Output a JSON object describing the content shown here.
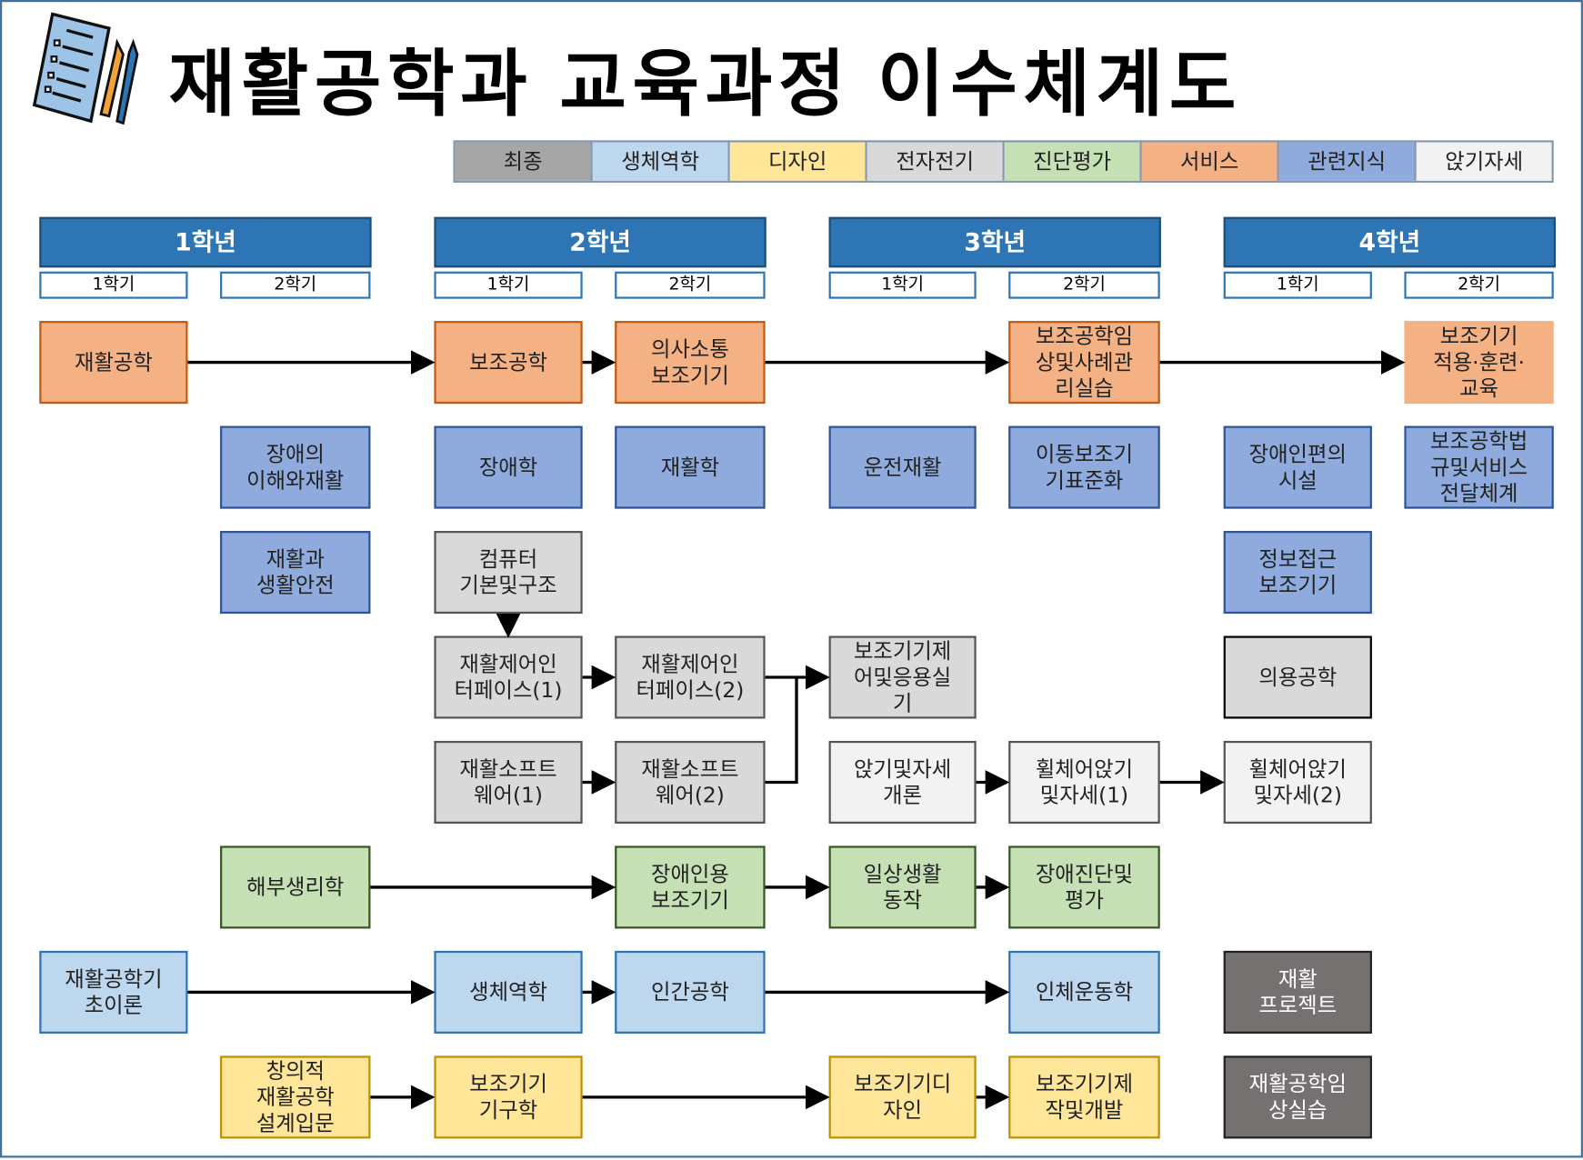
{
  "title": "재활공학과 교육과정 이수체계도",
  "logo_icon": "checklist-with-pencils-icon",
  "legend": [
    {
      "key": "final",
      "label": "최종",
      "color": "#A6A6A6"
    },
    {
      "key": "bio",
      "label": "생체역학",
      "color": "#BDD7EE"
    },
    {
      "key": "design",
      "label": "디자인",
      "color": "#FFE699"
    },
    {
      "key": "elec",
      "label": "전자전기",
      "color": "#D9D9D9"
    },
    {
      "key": "diag",
      "label": "진단평가",
      "color": "#C5E0B4"
    },
    {
      "key": "svc",
      "label": "서비스",
      "color": "#F4B183"
    },
    {
      "key": "rel",
      "label": "관련지식",
      "color": "#8FAADC"
    },
    {
      "key": "sit",
      "label": "앉기자세",
      "color": "#F2F2F2"
    }
  ],
  "box_colors": {
    "final": "#767171",
    "bio": "#BDD7EE",
    "design": "#FFE699",
    "elec": "#D9D9D9",
    "diag": "#C5E0B4",
    "svc": "#F4B183",
    "rel": "#8FAADC",
    "sit": "#F2F2F2"
  },
  "years": [
    "1학년",
    "2학년",
    "3학년",
    "4학년"
  ],
  "semesters": [
    "1학기",
    "2학기"
  ],
  "courses": [
    {
      "id": "c1",
      "name": "재활공학",
      "year": 1,
      "semester": 1,
      "category": "svc"
    },
    {
      "id": "c2",
      "name": "보조공학",
      "year": 2,
      "semester": 1,
      "category": "svc"
    },
    {
      "id": "c3",
      "name": "의사소통\n보조기기",
      "year": 2,
      "semester": 2,
      "category": "svc"
    },
    {
      "id": "c4",
      "name": "보조공학임\n상및사례관\n리실습",
      "year": 3,
      "semester": 2,
      "category": "svc"
    },
    {
      "id": "c5",
      "name": "보조기기\n적용·훈련·\n교육",
      "year": 4,
      "semester": 2,
      "category": "svc"
    },
    {
      "id": "c6",
      "name": "장애의\n이해와재활",
      "year": 1,
      "semester": 2,
      "category": "rel"
    },
    {
      "id": "c7",
      "name": "장애학",
      "year": 2,
      "semester": 1,
      "category": "rel"
    },
    {
      "id": "c8",
      "name": "재활학",
      "year": 2,
      "semester": 2,
      "category": "rel"
    },
    {
      "id": "c9",
      "name": "운전재활",
      "year": 3,
      "semester": 1,
      "category": "rel"
    },
    {
      "id": "c10",
      "name": "이동보조기\n기표준화",
      "year": 3,
      "semester": 2,
      "category": "rel"
    },
    {
      "id": "c11",
      "name": "장애인편의\n시설",
      "year": 4,
      "semester": 1,
      "category": "rel"
    },
    {
      "id": "c12",
      "name": "보조공학법\n규및서비스\n전달체계",
      "year": 4,
      "semester": 2,
      "category": "rel"
    },
    {
      "id": "c13",
      "name": "재활과\n생활안전",
      "year": 1,
      "semester": 2,
      "category": "rel"
    },
    {
      "id": "c14",
      "name": "컴퓨터\n기본및구조",
      "year": 2,
      "semester": 1,
      "category": "elec"
    },
    {
      "id": "c15",
      "name": "정보접근\n보조기기",
      "year": 4,
      "semester": 1,
      "category": "rel"
    },
    {
      "id": "c16",
      "name": "재활제어인\n터페이스(1)",
      "year": 2,
      "semester": 1,
      "category": "elec"
    },
    {
      "id": "c17",
      "name": "재활제어인\n터페이스(2)",
      "year": 2,
      "semester": 2,
      "category": "elec"
    },
    {
      "id": "c18",
      "name": "보조기기제\n어및응용실\n기",
      "year": 3,
      "semester": 1,
      "category": "elec"
    },
    {
      "id": "c19",
      "name": "의용공학",
      "year": 4,
      "semester": 1,
      "category": "elec"
    },
    {
      "id": "c20",
      "name": "재활소프트\n웨어(1)",
      "year": 2,
      "semester": 1,
      "category": "elec"
    },
    {
      "id": "c21",
      "name": "재활소프트\n웨어(2)",
      "year": 2,
      "semester": 2,
      "category": "elec"
    },
    {
      "id": "c22",
      "name": "앉기및자세\n개론",
      "year": 3,
      "semester": 1,
      "category": "sit"
    },
    {
      "id": "c23",
      "name": "휠체어앉기\n및자세(1)",
      "year": 3,
      "semester": 2,
      "category": "sit"
    },
    {
      "id": "c24",
      "name": "휠체어앉기\n및자세(2)",
      "year": 4,
      "semester": 1,
      "category": "sit"
    },
    {
      "id": "c25",
      "name": "해부생리학",
      "year": 1,
      "semester": 2,
      "category": "diag"
    },
    {
      "id": "c26",
      "name": "장애인용\n보조기기",
      "year": 2,
      "semester": 2,
      "category": "diag"
    },
    {
      "id": "c27",
      "name": "일상생활\n동작",
      "year": 3,
      "semester": 1,
      "category": "diag"
    },
    {
      "id": "c28",
      "name": "장애진단및\n평가",
      "year": 3,
      "semester": 2,
      "category": "diag"
    },
    {
      "id": "c29",
      "name": "재활공학기\n초이론",
      "year": 1,
      "semester": 1,
      "category": "bio"
    },
    {
      "id": "c30",
      "name": "생체역학",
      "year": 2,
      "semester": 1,
      "category": "bio"
    },
    {
      "id": "c31",
      "name": "인간공학",
      "year": 2,
      "semester": 2,
      "category": "bio"
    },
    {
      "id": "c32",
      "name": "인체운동학",
      "year": 3,
      "semester": 2,
      "category": "bio"
    },
    {
      "id": "c33",
      "name": "재활\n프로젝트",
      "year": 4,
      "semester": 1,
      "category": "final"
    },
    {
      "id": "c34",
      "name": "창의적\n재활공학\n설계입문",
      "year": 1,
      "semester": 2,
      "category": "design"
    },
    {
      "id": "c35",
      "name": "보조기기\n기구학",
      "year": 2,
      "semester": 1,
      "category": "design"
    },
    {
      "id": "c36",
      "name": "보조기기디\n자인",
      "year": 3,
      "semester": 1,
      "category": "design"
    },
    {
      "id": "c37",
      "name": "보조기기제\n작및개발",
      "year": 3,
      "semester": 2,
      "category": "design"
    },
    {
      "id": "c38",
      "name": "재활공학임\n상실습",
      "year": 4,
      "semester": 1,
      "category": "final"
    }
  ],
  "prerequisites": [
    [
      "c1",
      "c2"
    ],
    [
      "c2",
      "c3"
    ],
    [
      "c3",
      "c4"
    ],
    [
      "c4",
      "c5"
    ],
    [
      "c14",
      "c16"
    ],
    [
      "c16",
      "c17"
    ],
    [
      "c17",
      "c18"
    ],
    [
      "c20",
      "c21"
    ],
    [
      "c21",
      "c18"
    ],
    [
      "c22",
      "c23"
    ],
    [
      "c23",
      "c24"
    ],
    [
      "c25",
      "c26"
    ],
    [
      "c26",
      "c27"
    ],
    [
      "c27",
      "c28"
    ],
    [
      "c29",
      "c30"
    ],
    [
      "c30",
      "c31"
    ],
    [
      "c31",
      "c32"
    ],
    [
      "c34",
      "c35"
    ],
    [
      "c35",
      "c36"
    ],
    [
      "c36",
      "c37"
    ]
  ]
}
